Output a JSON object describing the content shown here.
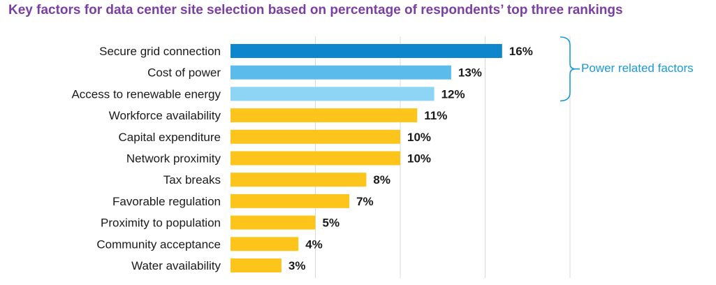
{
  "title": "Key factors for data center site selection based on percentage of respondents’ top three rankings",
  "annotation": {
    "label": "Power related factors",
    "color": "#1b9ad6",
    "applies_to": [
      "Secure grid connection",
      "Cost of power",
      "Access to renewable energy"
    ]
  },
  "chart_data": {
    "type": "bar",
    "orientation": "horizontal",
    "title": "Key factors for data center site selection based on percentage of respondents’ top three rankings",
    "categories": [
      "Secure grid connection",
      "Cost of power",
      "Access to renewable energy",
      "Workforce availability",
      "Capital expenditure",
      "Network proximity",
      "Tax breaks",
      "Favorable regulation",
      "Proximity to population",
      "Community acceptance",
      "Water availability"
    ],
    "values": [
      16,
      13,
      12,
      11,
      10,
      10,
      8,
      7,
      5,
      4,
      3
    ],
    "value_labels": [
      "16%",
      "13%",
      "12%",
      "11%",
      "10%",
      "10%",
      "8%",
      "7%",
      "5%",
      "4%",
      "3%"
    ],
    "bar_colors": [
      "#0e86cc",
      "#5bbbea",
      "#8dd4f5",
      "#fdc51c",
      "#fdc51c",
      "#fdc51c",
      "#fdc51c",
      "#fdc51c",
      "#fdc51c",
      "#fdc51c",
      "#fdc51c"
    ],
    "xlim": [
      0,
      20
    ],
    "grid": true,
    "legend": false
  }
}
